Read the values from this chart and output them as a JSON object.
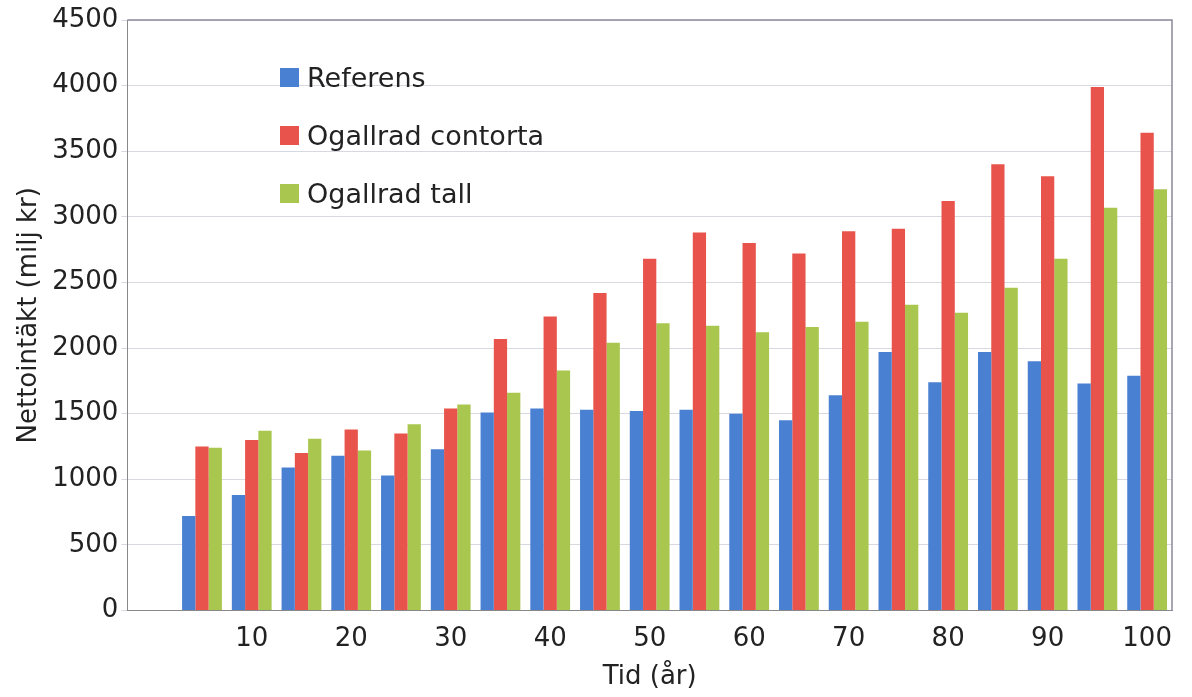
{
  "chart_data": {
    "type": "bar",
    "xlabel": "Tid (år)",
    "ylabel": "Nettointäkt (milj kr)",
    "categories": [
      null,
      null,
      "10",
      null,
      "20",
      null,
      "30",
      null,
      "40",
      null,
      "50",
      null,
      "60",
      null,
      "70",
      null,
      "80",
      null,
      "90",
      null,
      "100"
    ],
    "series": [
      {
        "name": "Referens",
        "color": "#4a80d2",
        "values": [
          null,
          720,
          880,
          1090,
          1180,
          1030,
          1230,
          1510,
          1540,
          1530,
          1520,
          1530,
          1500,
          1450,
          1640,
          1970,
          1740,
          1970,
          1900,
          1730,
          1790
        ]
      },
      {
        "name": "Ogallrad contorta",
        "color": "#e8534b",
        "values": [
          null,
          1250,
          1300,
          1200,
          1380,
          1350,
          1540,
          2070,
          2240,
          2420,
          2680,
          2880,
          2800,
          2720,
          2890,
          2910,
          3120,
          3400,
          3310,
          3990,
          3640
        ]
      },
      {
        "name": "Ogallrad tall",
        "color": "#a9c64e",
        "values": [
          null,
          1240,
          1370,
          1310,
          1220,
          1420,
          1570,
          1660,
          1830,
          2040,
          2190,
          2170,
          2120,
          2160,
          2200,
          2330,
          2270,
          2460,
          2680,
          3070,
          3210
        ]
      }
    ],
    "ylim": [
      0,
      4500
    ],
    "yticks": [
      0,
      500,
      1000,
      1500,
      2000,
      2500,
      3000,
      3500,
      4000,
      4500
    ],
    "grid": "y",
    "legend": "top left"
  }
}
